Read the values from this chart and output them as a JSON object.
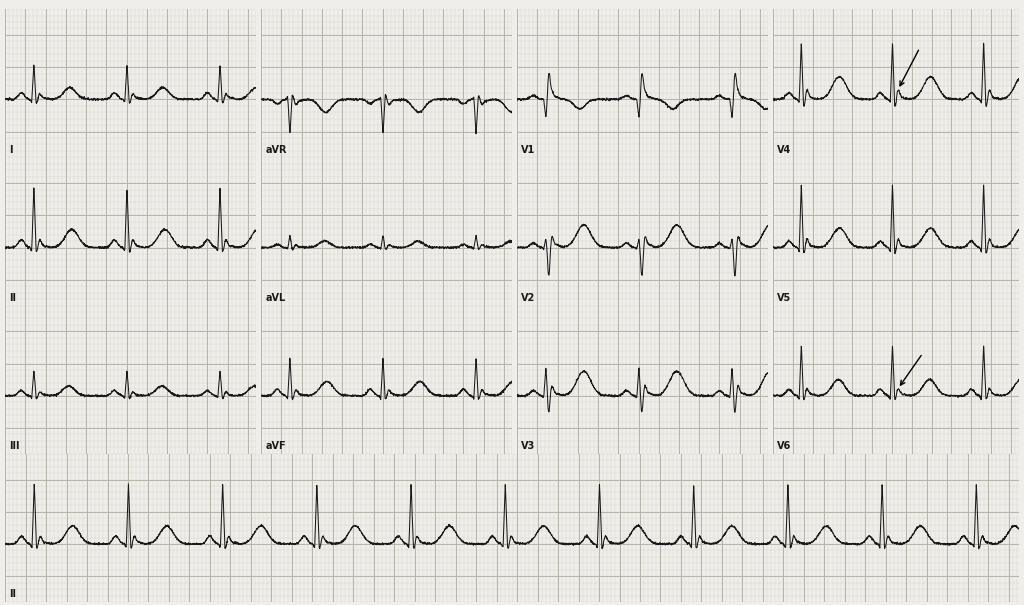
{
  "bg_color": "#f0eeea",
  "grid_minor_color": "#d8d4cc",
  "grid_major_color": "#b8b4aa",
  "line_color": "#1a1a1a",
  "text_color": "#1a1a1a",
  "fig_width": 10.24,
  "fig_height": 6.05,
  "dpi": 100,
  "paper_speed_mm_per_s": 25,
  "amplitude_mm_per_mV": 10,
  "minor_mm": 1,
  "major_mm": 5,
  "leads_row1": [
    "I",
    "aVR",
    "V1",
    "V4"
  ],
  "leads_row2": [
    "II",
    "aVL",
    "V2",
    "V5"
  ],
  "leads_row3": [
    "III",
    "aVF",
    "V3",
    "V6"
  ],
  "rhythm_lead": "II",
  "rr_interval": 0.92,
  "fs": 500,
  "arrow1_lead": "V4",
  "arrow2_lead": "V6"
}
